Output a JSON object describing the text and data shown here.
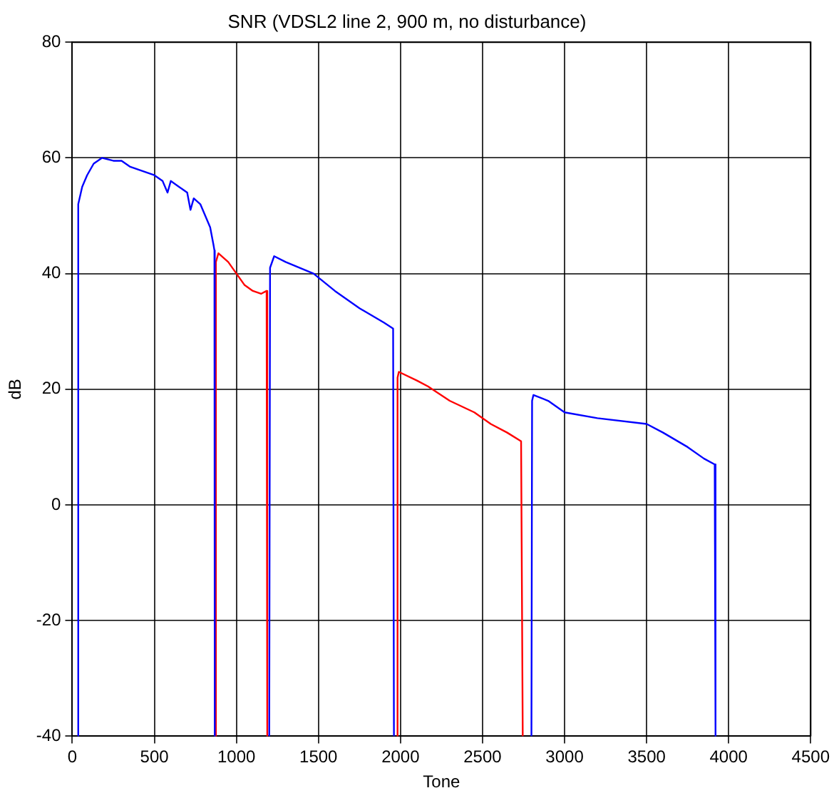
{
  "chart_data": {
    "type": "line",
    "title": "SNR (VDSL2 line 2, 900 m, no disturbance)",
    "xlabel": "Tone",
    "ylabel": "dB",
    "xlim": [
      0,
      4500
    ],
    "xticks": [
      0,
      500,
      1000,
      1500,
      2000,
      2500,
      3000,
      3500,
      4000,
      4500
    ],
    "ylim": [
      -40,
      80
    ],
    "yticks": [
      -40,
      -20,
      0,
      20,
      40,
      60,
      80
    ],
    "grid": true,
    "legend": false,
    "marker": "none",
    "line_style": "solid",
    "series": [
      {
        "color": "#0000ff",
        "x": [
          33,
          36,
          60,
          90,
          130,
          180,
          250,
          300,
          350,
          450,
          500,
          550,
          580,
          600,
          650,
          700,
          720,
          740,
          780,
          810,
          840,
          860,
          866,
          868
        ],
        "values": [
          -40,
          52,
          55,
          57,
          59,
          60,
          59.5,
          59.5,
          58.5,
          57.5,
          57,
          56,
          54,
          56,
          55,
          54,
          51,
          53,
          52,
          50,
          48,
          45,
          44,
          -40
        ]
      },
      {
        "color": "#ff0000",
        "x": [
          872,
          875,
          890,
          950,
          1000,
          1050,
          1100,
          1150,
          1184,
          1188
        ],
        "values": [
          -40,
          42,
          43.5,
          42,
          40,
          38,
          37,
          36.5,
          37,
          -40
        ]
      },
      {
        "color": "#0000ff",
        "x": [
          1200,
          1205,
          1230,
          1300,
          1470,
          1600,
          1750,
          1900,
          1955,
          1960
        ],
        "values": [
          -40,
          41,
          43,
          42,
          40,
          37,
          34,
          31.5,
          30.5,
          -40
        ]
      },
      {
        "color": "#ff0000",
        "x": [
          1978,
          1982,
          1990,
          2100,
          2167,
          2300,
          2450,
          2550,
          2650,
          2735,
          2745
        ],
        "values": [
          -40,
          22,
          23,
          21.5,
          20.5,
          18,
          16,
          14,
          12.5,
          11,
          -40
        ]
      },
      {
        "color": "#0000ff",
        "x": [
          2798,
          2802,
          2810,
          2900,
          3000,
          3200,
          3500,
          3600,
          3750,
          3850,
          3915,
          3920
        ],
        "values": [
          -40,
          18,
          19,
          18,
          16,
          15,
          14,
          12.5,
          10,
          8,
          7,
          -40
        ]
      }
    ]
  }
}
